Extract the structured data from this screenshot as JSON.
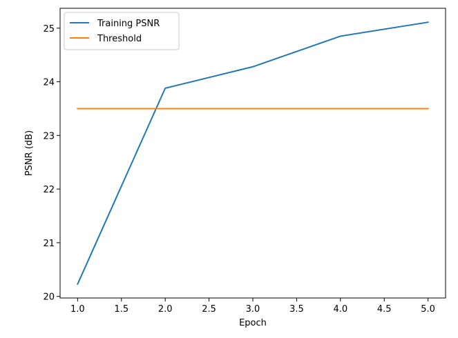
{
  "chart_data": {
    "type": "line",
    "xlabel": "Epoch",
    "ylabel": "PSNR (dB)",
    "xlim": [
      0.8,
      5.2
    ],
    "ylim": [
      19.97,
      25.37
    ],
    "xticks": [
      1.0,
      1.5,
      2.0,
      2.5,
      3.0,
      3.5,
      4.0,
      4.5,
      5.0
    ],
    "xtick_labels": [
      "1.0",
      "1.5",
      "2.0",
      "2.5",
      "3.0",
      "3.5",
      "4.0",
      "4.5",
      "5.0"
    ],
    "yticks": [
      20,
      21,
      22,
      23,
      24,
      25
    ],
    "ytick_labels": [
      "20",
      "21",
      "22",
      "23",
      "24",
      "25"
    ],
    "grid": false,
    "legend_position": "top-left",
    "series": [
      {
        "name": "Training PSNR",
        "color": "#1f77b4",
        "x": [
          1,
          2,
          3,
          4,
          5
        ],
        "y": [
          20.23,
          23.88,
          24.28,
          24.85,
          25.11
        ]
      },
      {
        "name": "Threshold",
        "color": "#ff7f0e",
        "x": [
          1,
          2,
          3,
          4,
          5
        ],
        "y": [
          23.5,
          23.5,
          23.5,
          23.5,
          23.5
        ]
      }
    ]
  }
}
